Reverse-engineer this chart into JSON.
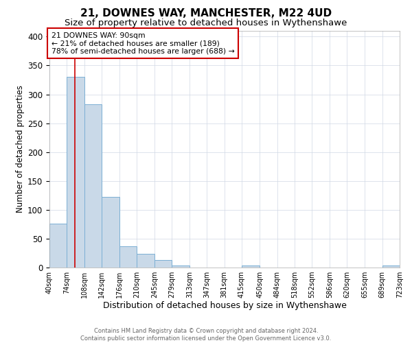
{
  "title": "21, DOWNES WAY, MANCHESTER, M22 4UD",
  "subtitle": "Size of property relative to detached houses in Wythenshawe",
  "xlabel": "Distribution of detached houses by size in Wythenshawe",
  "ylabel": "Number of detached properties",
  "bin_edges": [
    40,
    74,
    108,
    142,
    176,
    210,
    245,
    279,
    313,
    347,
    381,
    415,
    450,
    484,
    518,
    552,
    586,
    620,
    655,
    689,
    723
  ],
  "bar_heights": [
    76,
    330,
    283,
    122,
    37,
    24,
    13,
    4,
    0,
    0,
    0,
    3,
    0,
    0,
    0,
    0,
    0,
    0,
    0,
    3
  ],
  "bar_color": "#c9d9e8",
  "bar_edgecolor": "#7bafd4",
  "red_line_x": 90,
  "ylim": [
    0,
    410
  ],
  "yticks": [
    0,
    50,
    100,
    150,
    200,
    250,
    300,
    350,
    400
  ],
  "annotation_title": "21 DOWNES WAY: 90sqm",
  "annotation_line1": "← 21% of detached houses are smaller (189)",
  "annotation_line2": "78% of semi-detached houses are larger (688) →",
  "annotation_box_facecolor": "#ffffff",
  "annotation_box_edgecolor": "#cc0000",
  "footer1": "Contains HM Land Registry data © Crown copyright and database right 2024.",
  "footer2": "Contains public sector information licensed under the Open Government Licence v3.0.",
  "background_color": "#ffffff",
  "grid_color": "#d0d8e4",
  "title_fontsize": 11,
  "subtitle_fontsize": 9.5,
  "xlabel_fontsize": 9,
  "ylabel_fontsize": 8.5,
  "tick_fontsize": 7,
  "tick_labels": [
    "40sqm",
    "74sqm",
    "108sqm",
    "142sqm",
    "176sqm",
    "210sqm",
    "245sqm",
    "279sqm",
    "313sqm",
    "347sqm",
    "381sqm",
    "415sqm",
    "450sqm",
    "484sqm",
    "518sqm",
    "552sqm",
    "586sqm",
    "620sqm",
    "655sqm",
    "689sqm",
    "723sqm"
  ]
}
